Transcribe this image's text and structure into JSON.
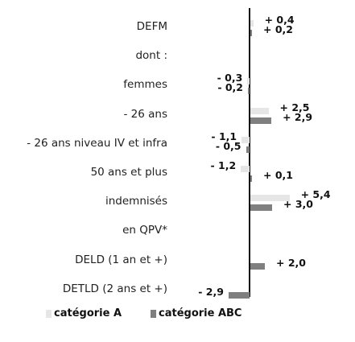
{
  "chart_data": {
    "type": "bar",
    "orientation": "horizontal",
    "title": "",
    "xlabel": "",
    "ylabel": "",
    "categories": [
      "DEFM",
      "dont :",
      "femmes",
      "- 26 ans",
      "- 26 ans niveau IV et infra",
      "50 ans et plus",
      "indemnisés",
      "en QPV*",
      "DELD (1 an et +)",
      "DETLD (2 ans et +)"
    ],
    "series": [
      {
        "name": "catégorie A",
        "color": "#e6e6e6",
        "values": [
          0.4,
          null,
          -0.3,
          2.5,
          -1.1,
          -1.2,
          5.4,
          null,
          null,
          null
        ],
        "labels": [
          "+ 0,4",
          "",
          "- 0,3",
          "+ 2,5",
          "- 1,1",
          "- 1,2",
          "+ 5,4",
          "",
          "",
          ""
        ]
      },
      {
        "name": "catégorie ABC",
        "color": "#7f7f7f",
        "values": [
          0.2,
          null,
          -0.2,
          2.9,
          -0.5,
          0.1,
          3.0,
          null,
          2.0,
          -2.9
        ],
        "labels": [
          "+ 0,2",
          "",
          "- 0,2",
          "+ 2,9",
          "- 0,5",
          "+ 0,1",
          "+ 3,0",
          "",
          "+ 2,0",
          "- 2,9"
        ]
      }
    ],
    "legend_position": "bottom-left",
    "grid": false
  }
}
